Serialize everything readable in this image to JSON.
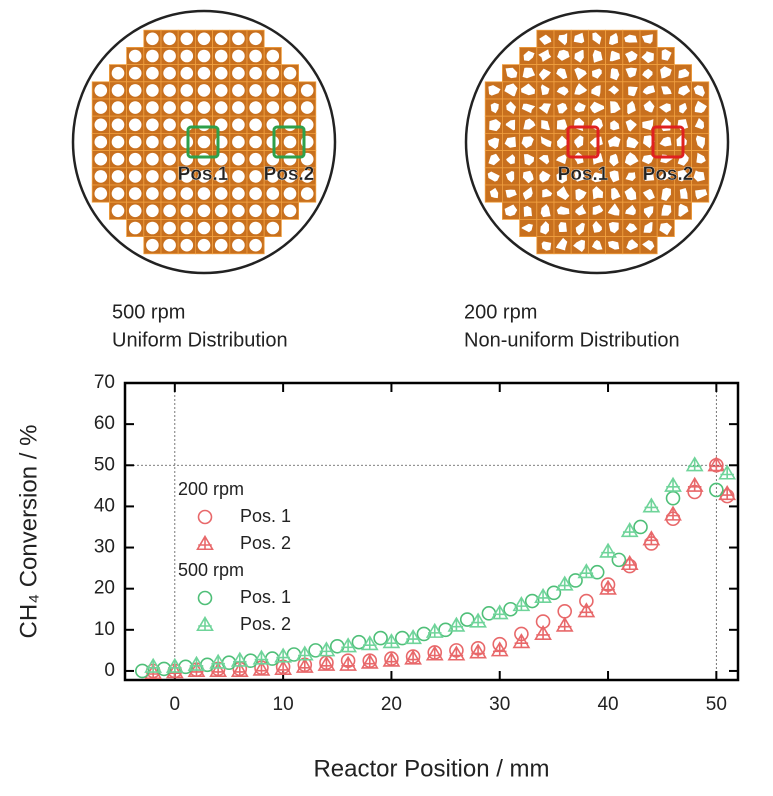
{
  "panels": [
    {
      "labels": [
        "Pos.1",
        "Pos.2"
      ],
      "caption": [
        "500 rpm",
        "Uniform Distribution"
      ]
    },
    {
      "labels": [
        "Pos.1",
        "Pos.2"
      ],
      "caption": [
        "200 rpm",
        "Non-uniform Distribution"
      ]
    }
  ],
  "chart_data": {
    "type": "scatter",
    "xlabel": "Reactor Position / mm",
    "ylabel": "CH₄ Conversion / %",
    "xlim": [
      -4.6,
      52
    ],
    "ylim": [
      -2.2,
      70
    ],
    "xticks": [
      0,
      10,
      20,
      30,
      40,
      50
    ],
    "yticks": [
      0,
      10,
      20,
      30,
      40,
      50,
      60,
      70
    ],
    "reference_lines": {
      "x": [
        0,
        50
      ],
      "y": [
        50
      ]
    },
    "groups": [
      {
        "name": "200 rpm",
        "series": [
          {
            "name": "Pos. 1",
            "color": "#e8686a",
            "marker": "circle",
            "x": [
              -2,
              0,
              2,
              4,
              6,
              8,
              10,
              12,
              14,
              16,
              18,
              20,
              22,
              24,
              26,
              28,
              30,
              32,
              34,
              36,
              38,
              40,
              42,
              44,
              46,
              48,
              50,
              51
            ],
            "values": [
              0,
              0,
              0.3,
              0.5,
              0.5,
              0.8,
              1,
              1.5,
              2,
              2.5,
              2.5,
              3,
              3.5,
              4.5,
              5,
              5.5,
              6.5,
              9,
              12,
              14.5,
              17,
              21,
              25.5,
              31,
              37,
              43.5,
              50,
              42.5
            ]
          },
          {
            "name": "Pos. 2",
            "color": "#e8686a",
            "marker": "triangle",
            "x": [
              -2,
              0,
              2,
              4,
              6,
              8,
              10,
              12,
              14,
              16,
              18,
              20,
              22,
              24,
              26,
              28,
              30,
              32,
              34,
              36,
              38,
              40,
              42,
              44,
              46,
              48,
              50,
              51
            ],
            "values": [
              -0.5,
              -0.3,
              0,
              0,
              0,
              0.3,
              0.5,
              1,
              1.5,
              1.5,
              2,
              2.5,
              3,
              4,
              4,
              4.5,
              5,
              7,
              9,
              11,
              14.5,
              20,
              26,
              32,
              38,
              45,
              50,
              43
            ]
          }
        ]
      },
      {
        "name": "500 rpm",
        "series": [
          {
            "name": "Pos. 1",
            "color": "#4fbf78",
            "marker": "circle",
            "x": [
              -3,
              -1,
              1,
              3,
              5,
              7,
              9,
              11,
              13,
              15,
              17,
              19,
              21,
              23,
              25,
              27,
              29,
              31,
              33,
              35,
              37,
              39,
              41,
              43,
              46,
              50
            ],
            "values": [
              0,
              0.5,
              1,
              1.5,
              2,
              2.5,
              3,
              4,
              5,
              6,
              7,
              8,
              8,
              9,
              10,
              12.5,
              14,
              15,
              17,
              19,
              22,
              24,
              27,
              35,
              42,
              44
            ]
          },
          {
            "name": "Pos. 2",
            "color": "#6fd49a",
            "marker": "triangle",
            "x": [
              -2,
              0,
              2,
              4,
              6,
              8,
              10,
              12,
              14,
              16,
              18,
              20,
              22,
              24,
              26,
              28,
              30,
              32,
              34,
              36,
              38,
              40,
              42,
              44,
              46,
              48,
              51
            ],
            "values": [
              1,
              1,
              1.5,
              2,
              2.5,
              3,
              3.5,
              4,
              5,
              6,
              6.5,
              7,
              8,
              9.5,
              11,
              12,
              14,
              16,
              18,
              21,
              24,
              29,
              34,
              40,
              45,
              50,
              48
            ]
          }
        ]
      }
    ]
  }
}
